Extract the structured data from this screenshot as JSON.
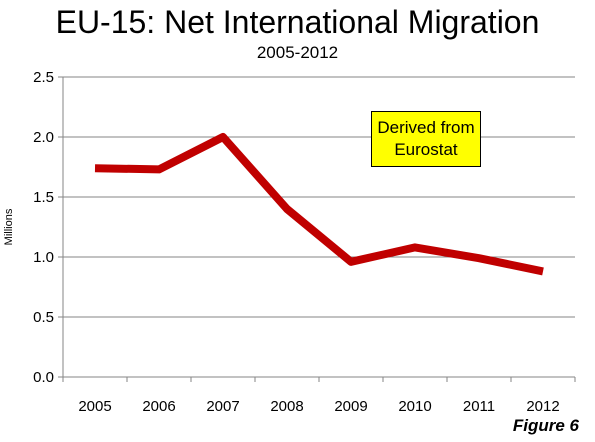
{
  "chart_data": {
    "type": "line",
    "title": "EU-15: Net International Migration",
    "subtitle": "2005-2012",
    "ylabel": "Millions",
    "xlabel": "",
    "categories": [
      "2005",
      "2006",
      "2007",
      "2008",
      "2009",
      "2010",
      "2011",
      "2012"
    ],
    "series": [
      {
        "values": [
          1.74,
          1.73,
          2.0,
          1.4,
          0.96,
          1.08,
          0.99,
          0.88
        ],
        "color": "#c00000"
      }
    ],
    "ylim": [
      0,
      2.5
    ],
    "yticks": [
      "0.0",
      "0.5",
      "1.0",
      "1.5",
      "2.0",
      "2.5"
    ],
    "grid": true,
    "annotation": {
      "line1": "Derived from",
      "line2": "Eurostat",
      "background": "#ffff00"
    },
    "figure_label": "Figure 6"
  }
}
